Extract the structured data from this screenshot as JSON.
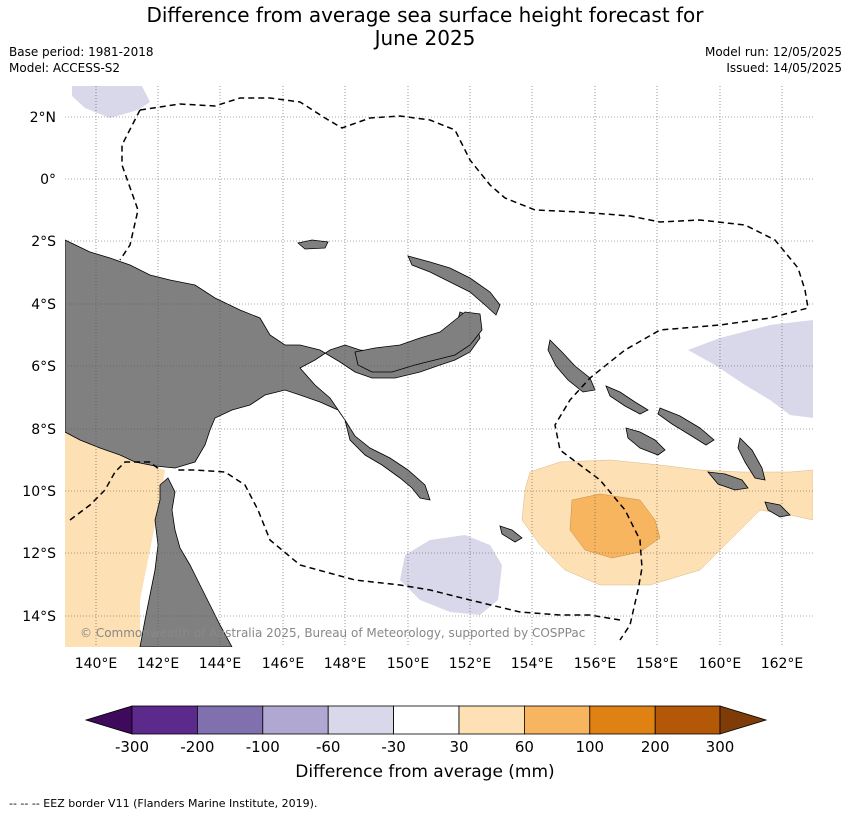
{
  "title_line1": "Difference from average sea surface height forecast for",
  "title_line2": "June 2025",
  "base_period": "Base period: 1981-2018",
  "model": "Model: ACCESS-S2",
  "model_run": "Model run: 12/05/2025",
  "issued": "Issued: 14/05/2025",
  "copyright": "© Commonwealth of Australia 2025, Bureau of Meteorology, supported by COSPPac",
  "lat_labels": [
    "2°N",
    "0°",
    "2°S",
    "4°S",
    "6°S",
    "8°S",
    "10°S",
    "12°S",
    "14°S"
  ],
  "lon_labels": [
    "140°E",
    "142°E",
    "144°E",
    "146°E",
    "148°E",
    "150°E",
    "152°E",
    "154°E",
    "156°E",
    "158°E",
    "160°E",
    "162°E"
  ],
  "colorbar": {
    "title": "Difference from average (mm)",
    "ticks": [
      "-300",
      "-200",
      "-100",
      "-60",
      "-30",
      "30",
      "60",
      "100",
      "200",
      "300"
    ],
    "colors": [
      "#3f0a5c",
      "#5b2a8c",
      "#8070ae",
      "#b0a8d2",
      "#d8d8ea",
      "#ffffff",
      "#fde0b3",
      "#f8b55f",
      "#e08213",
      "#b25807",
      "#7f3b08"
    ]
  },
  "footnote": "-- -- -- EEZ border V11 (Flanders Marine Institute, 2019).",
  "colors": {
    "land": "#808080",
    "eez": "#000000",
    "grid": "#555555"
  }
}
